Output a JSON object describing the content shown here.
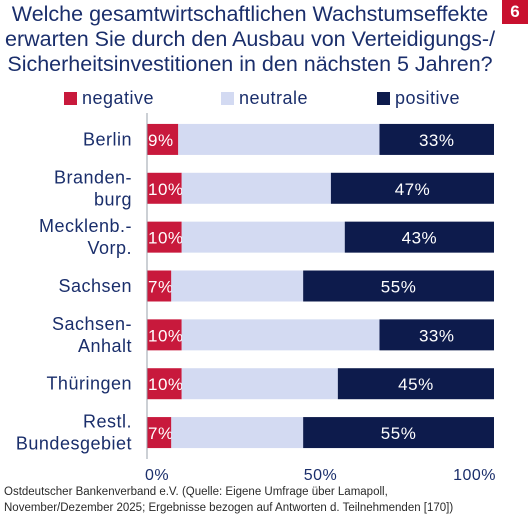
{
  "title_lines": [
    "Welche gesamtwirtschaftlichen Wachstumseffekte",
    "erwarten Sie durch den Ausbau von Verteidigungs-/",
    "Sicherheitsinvestitionen in den nächsten 5 Jahren?"
  ],
  "page_number": "6",
  "colors": {
    "negative": "#c8193c",
    "neutral": "#d3daf2",
    "positive": "#0d1b4c",
    "text": "#1a2e6b"
  },
  "chart_data": {
    "type": "bar",
    "orientation": "horizontal",
    "stacked": true,
    "categories": [
      [
        "Berlin"
      ],
      [
        "Branden-",
        "burg"
      ],
      [
        "Mecklenb.-",
        "Vorp."
      ],
      [
        "Sachsen"
      ],
      [
        "Sachsen-",
        "Anhalt"
      ],
      [
        "Thüringen"
      ],
      [
        "Restl.",
        "Bundesgebiet"
      ]
    ],
    "series": [
      {
        "name": "negative",
        "values": [
          9,
          10,
          10,
          7,
          10,
          10,
          7
        ],
        "labels": [
          "9%",
          "10%",
          "10%",
          "7%",
          "10%",
          "10%",
          "7%"
        ]
      },
      {
        "name": "neutrale",
        "values": [
          58,
          43,
          47,
          38,
          57,
          45,
          38
        ],
        "labels": [
          "",
          "",
          "",
          "",
          "",
          "",
          ""
        ]
      },
      {
        "name": "positive",
        "values": [
          33,
          47,
          43,
          55,
          33,
          45,
          55
        ],
        "labels": [
          "33%",
          "47%",
          "43%",
          "55%",
          "33%",
          "45%",
          "55%"
        ]
      }
    ],
    "xlim": [
      0,
      100
    ],
    "xticks": [
      "0%",
      "50%",
      "100%"
    ],
    "legend_position": "top"
  },
  "footer_lines": [
    "Ostdeutscher Bankenverband e.V. (Quelle: Eigene Umfrage über Lamapoll,",
    "November/Dezember 2025; Ergebnisse bezogen auf Antworten d. Teilnehmenden [170])"
  ]
}
